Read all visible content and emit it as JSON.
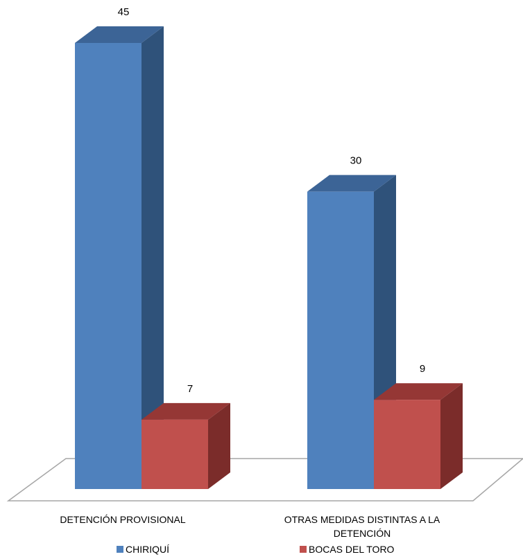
{
  "chart_data": {
    "type": "bar",
    "categories": [
      "DETENCIÓN PROVISIONAL",
      "OTRAS MEDIDAS DISTINTAS A LA DETENCIÓN"
    ],
    "category_lines": [
      [
        "DETENCIÓN PROVISIONAL"
      ],
      [
        "OTRAS MEDIDAS DISTINTAS A LA",
        "DETENCIÓN"
      ]
    ],
    "series": [
      {
        "name": "CHIRIQUÍ",
        "values": [
          45,
          30
        ],
        "color": "#4F81BD",
        "side_color": "#2F527A",
        "top_color": "#3C6496"
      },
      {
        "name": "BOCAS DEL TORO",
        "values": [
          7,
          9
        ],
        "color": "#C0504D",
        "side_color": "#7B2C2A",
        "top_color": "#953735"
      }
    ],
    "ylim": [
      0,
      45
    ],
    "legend_position": "bottom",
    "grid": false,
    "three_d": true,
    "floor_color": "#A6A6A6"
  }
}
